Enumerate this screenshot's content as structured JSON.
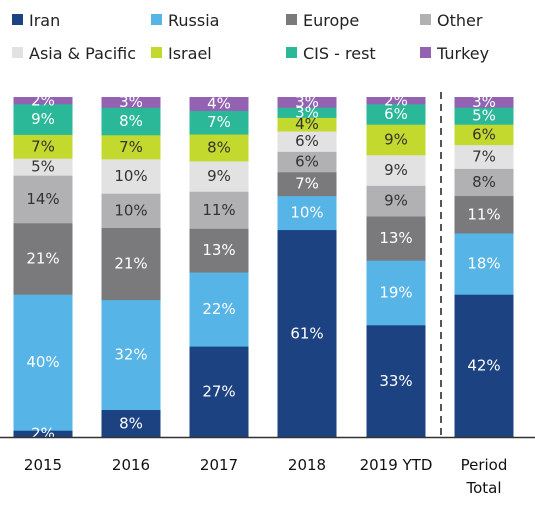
{
  "chart_data": {
    "type": "bar",
    "stacked": true,
    "percent": true,
    "categories": [
      "2015",
      "2016",
      "2017",
      "2018",
      "2019 YTD",
      "Period Total"
    ],
    "series": [
      {
        "name": "Iran",
        "color": "#1d4282",
        "values": [
          2,
          8,
          27,
          61,
          33,
          42
        ]
      },
      {
        "name": "Russia",
        "color": "#56b5e6",
        "values": [
          40,
          32,
          22,
          10,
          19,
          18
        ]
      },
      {
        "name": "Europe",
        "color": "#7a7a7c",
        "values": [
          21,
          21,
          13,
          7,
          13,
          11
        ]
      },
      {
        "name": "Other",
        "color": "#b1b1b3",
        "values": [
          14,
          10,
          11,
          6,
          9,
          8
        ]
      },
      {
        "name": "Asia & Pacific",
        "color": "#e2e2e3",
        "values": [
          5,
          10,
          9,
          6,
          9,
          7
        ]
      },
      {
        "name": "Israel",
        "color": "#c3d92d",
        "values": [
          7,
          7,
          8,
          4,
          9,
          6
        ]
      },
      {
        "name": "CIS - rest",
        "color": "#2ab898",
        "values": [
          9,
          8,
          7,
          3,
          6,
          5
        ]
      },
      {
        "name": "Turkey",
        "color": "#9462b3",
        "values": [
          2,
          3,
          4,
          3,
          2,
          3
        ]
      }
    ],
    "value_suffix": "%",
    "legend_position": "top",
    "separator_before_last": true
  }
}
